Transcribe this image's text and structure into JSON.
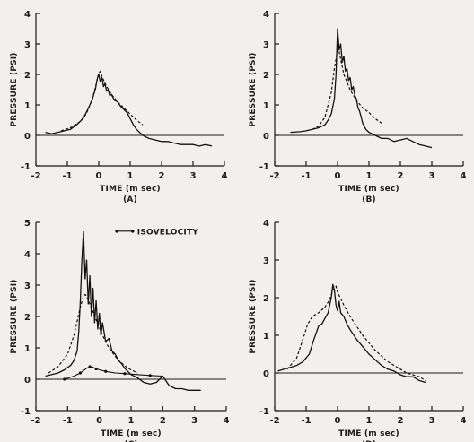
{
  "chart_data": [
    {
      "type": "line",
      "panel_label": "(A)",
      "xlabel": "TIME (m sec)",
      "ylabel": "PRESSURE (PSI)",
      "xlim": [
        -2,
        4
      ],
      "ylim": [
        -1,
        4
      ],
      "xticks": [
        -2,
        -1,
        0,
        1,
        2,
        3,
        4
      ],
      "yticks": [
        -1,
        0,
        1,
        2,
        3,
        4
      ],
      "xtick_labels": [
        "-2",
        "-1",
        "0",
        "1",
        "2",
        "3",
        "4"
      ],
      "ytick_labels": [
        "-1",
        "0",
        "1",
        "2",
        "3",
        "4"
      ],
      "series": [
        {
          "style": "solid",
          "x": [
            -1.7,
            -1.5,
            -1.3,
            -1.1,
            -0.9,
            -0.7,
            -0.5,
            -0.35,
            -0.2,
            -0.1,
            -0.05,
            0,
            0.05,
            0.1,
            0.15,
            0.2,
            0.25,
            0.3,
            0.35,
            0.4,
            0.5,
            0.6,
            0.7,
            0.8,
            0.9,
            1.0,
            1.1,
            1.2,
            1.3,
            1.4,
            1.5,
            1.6,
            1.8,
            2.0,
            2.2,
            2.4,
            2.6,
            2.8,
            3.0,
            3.2,
            3.4,
            3.6
          ],
          "y": [
            0.1,
            0.05,
            0.1,
            0.15,
            0.2,
            0.35,
            0.55,
            0.85,
            1.2,
            1.55,
            1.85,
            2.0,
            1.75,
            1.9,
            1.6,
            1.7,
            1.45,
            1.5,
            1.3,
            1.35,
            1.15,
            1.1,
            0.95,
            0.85,
            0.75,
            0.55,
            0.35,
            0.2,
            0.1,
            0.0,
            -0.05,
            -0.1,
            -0.15,
            -0.2,
            -0.2,
            -0.25,
            -0.3,
            -0.3,
            -0.3,
            -0.35,
            -0.3,
            -0.35
          ]
        },
        {
          "style": "dashed",
          "x": [
            -1.2,
            -0.9,
            -0.6,
            -0.4,
            -0.2,
            -0.1,
            0,
            0.05,
            0.1,
            0.2,
            0.4,
            0.6,
            0.8,
            1.0,
            1.2,
            1.4
          ],
          "y": [
            0.15,
            0.25,
            0.45,
            0.7,
            1.2,
            1.6,
            2.05,
            2.1,
            1.95,
            1.7,
            1.35,
            1.1,
            0.9,
            0.7,
            0.5,
            0.35
          ]
        }
      ]
    },
    {
      "type": "line",
      "panel_label": "(B)",
      "xlabel": "TIME (m sec)",
      "ylabel": "PRESSURE (PSI)",
      "xlim": [
        -2,
        4
      ],
      "ylim": [
        -1,
        4
      ],
      "xticks": [
        -2,
        -1,
        0,
        1,
        2,
        3,
        4
      ],
      "yticks": [
        -1,
        0,
        1,
        2,
        3,
        4
      ],
      "xtick_labels": [
        "-2",
        "-1",
        "0",
        "1",
        "2",
        "3",
        "4"
      ],
      "ytick_labels": [
        "-1",
        "0",
        "1",
        "2",
        "3",
        "4"
      ],
      "series": [
        {
          "style": "solid",
          "x": [
            -1.5,
            -1.2,
            -1.0,
            -0.8,
            -0.6,
            -0.4,
            -0.3,
            -0.2,
            -0.1,
            -0.05,
            0,
            0.05,
            0.1,
            0.15,
            0.2,
            0.25,
            0.3,
            0.35,
            0.4,
            0.45,
            0.5,
            0.55,
            0.6,
            0.65,
            0.7,
            0.75,
            0.8,
            0.9,
            1.0,
            1.2,
            1.4,
            1.6,
            1.8,
            2.0,
            2.2,
            2.4,
            2.6,
            2.8,
            3.0
          ],
          "y": [
            0.1,
            0.12,
            0.15,
            0.2,
            0.25,
            0.35,
            0.5,
            0.7,
            1.2,
            2.0,
            3.5,
            2.8,
            3.0,
            2.4,
            2.6,
            2.1,
            2.2,
            1.8,
            1.9,
            1.5,
            1.6,
            1.3,
            1.2,
            0.9,
            0.8,
            0.6,
            0.4,
            0.2,
            0.1,
            0.0,
            -0.1,
            -0.1,
            -0.2,
            -0.15,
            -0.1,
            -0.2,
            -0.3,
            -0.35,
            -0.4
          ]
        },
        {
          "style": "dashed",
          "x": [
            -0.8,
            -0.6,
            -0.4,
            -0.2,
            -0.1,
            0,
            0.05,
            0.1,
            0.2,
            0.4,
            0.6,
            0.8,
            1.0,
            1.2,
            1.4
          ],
          "y": [
            0.2,
            0.3,
            0.6,
            1.4,
            2.2,
            2.8,
            2.75,
            2.5,
            2.0,
            1.5,
            1.15,
            0.9,
            0.75,
            0.55,
            0.4
          ]
        }
      ]
    },
    {
      "type": "line",
      "panel_label": "(C)",
      "xlabel": "TIME (m sec)",
      "ylabel": "PRESSURE (PSI)",
      "xlim": [
        -2,
        4
      ],
      "ylim": [
        -1,
        5
      ],
      "xticks": [
        -2,
        -1,
        0,
        1,
        2,
        3,
        4
      ],
      "yticks": [
        -1,
        0,
        1,
        2,
        3,
        4,
        5
      ],
      "xtick_labels": [
        "-2",
        "-1",
        "0",
        "1",
        "2",
        "3",
        "4"
      ],
      "ytick_labels": [
        "-1",
        "0",
        "1",
        "2",
        "3",
        "4",
        "5"
      ],
      "legend": {
        "label": "ISOVELOCITY",
        "position": "top-right"
      },
      "series": [
        {
          "style": "solid",
          "x": [
            -1.7,
            -1.5,
            -1.3,
            -1.1,
            -0.9,
            -0.8,
            -0.7,
            -0.65,
            -0.6,
            -0.55,
            -0.5,
            -0.45,
            -0.4,
            -0.35,
            -0.3,
            -0.25,
            -0.2,
            -0.15,
            -0.1,
            -0.05,
            0,
            0.05,
            0.1,
            0.2,
            0.3,
            0.4,
            0.5,
            0.6,
            0.7,
            0.8,
            1.0,
            1.2,
            1.4,
            1.6,
            1.8,
            2.0,
            2.2,
            2.4,
            2.6,
            2.8,
            3.0,
            3.2
          ],
          "y": [
            0.1,
            0.15,
            0.2,
            0.3,
            0.45,
            0.6,
            0.9,
            1.5,
            2.5,
            3.8,
            4.7,
            3.2,
            3.8,
            2.4,
            3.3,
            2.0,
            2.9,
            1.8,
            2.5,
            1.6,
            2.1,
            1.4,
            1.8,
            1.2,
            1.3,
            0.9,
            0.8,
            0.6,
            0.5,
            0.35,
            0.15,
            0.05,
            -0.1,
            -0.15,
            -0.1,
            0.1,
            -0.2,
            -0.3,
            -0.3,
            -0.35,
            -0.35,
            -0.35
          ]
        },
        {
          "style": "dashed",
          "x": [
            -1.6,
            -1.3,
            -1.0,
            -0.8,
            -0.6,
            -0.5,
            -0.45,
            -0.4,
            -0.3,
            -0.1,
            0.1,
            0.3,
            0.6,
            0.9,
            1.2
          ],
          "y": [
            0.2,
            0.4,
            0.8,
            1.4,
            2.3,
            2.65,
            2.7,
            2.65,
            2.4,
            1.9,
            1.4,
            1.0,
            0.6,
            0.35,
            0.2
          ]
        },
        {
          "style": "isovelocity",
          "name": "ISOVELOCITY",
          "x": [
            -1.1,
            -0.8,
            -0.6,
            -0.4,
            -0.3,
            -0.2,
            -0.1,
            0,
            0.2,
            0.5,
            0.8,
            1.2,
            1.6,
            2.0
          ],
          "y": [
            0.0,
            0.1,
            0.2,
            0.35,
            0.4,
            0.38,
            0.33,
            0.3,
            0.25,
            0.2,
            0.18,
            0.15,
            0.12,
            0.1
          ]
        }
      ]
    },
    {
      "type": "line",
      "panel_label": "(D)",
      "xlabel": "TIME (m sec)",
      "ylabel": "PRESSURE (PSI)",
      "xlim": [
        -2,
        4
      ],
      "ylim": [
        -1,
        4
      ],
      "xticks": [
        -2,
        -1,
        0,
        1,
        2,
        3,
        4
      ],
      "yticks": [
        -1,
        0,
        1,
        2,
        3,
        4
      ],
      "xtick_labels": [
        "-2",
        "-1",
        "0",
        "1",
        "2",
        "3",
        "4"
      ],
      "ytick_labels": [
        "-1",
        "0",
        "1",
        "2",
        "3",
        "4"
      ],
      "series": [
        {
          "style": "solid",
          "x": [
            -1.9,
            -1.7,
            -1.5,
            -1.3,
            -1.1,
            -0.9,
            -0.75,
            -0.6,
            -0.5,
            -0.4,
            -0.3,
            -0.2,
            -0.15,
            -0.1,
            -0.05,
            0,
            0.05,
            0.1,
            0.2,
            0.3,
            0.4,
            0.6,
            0.8,
            1.0,
            1.2,
            1.4,
            1.6,
            1.8,
            2.0,
            2.2,
            2.4,
            2.6,
            2.8
          ],
          "y": [
            0.05,
            0.1,
            0.15,
            0.2,
            0.3,
            0.5,
            0.9,
            1.25,
            1.3,
            1.45,
            1.6,
            2.0,
            2.35,
            2.2,
            1.8,
            1.65,
            1.9,
            1.6,
            1.5,
            1.3,
            1.15,
            0.9,
            0.7,
            0.5,
            0.35,
            0.2,
            0.1,
            0.05,
            -0.05,
            -0.1,
            -0.1,
            -0.2,
            -0.25
          ]
        },
        {
          "style": "dashed",
          "x": [
            -1.6,
            -1.3,
            -1.1,
            -0.95,
            -0.8,
            -0.6,
            -0.4,
            -0.25,
            -0.15,
            -0.05,
            0,
            0.2,
            0.4,
            0.6,
            0.8,
            1.0,
            1.2,
            1.4,
            1.6,
            1.8,
            2.0,
            2.2,
            2.4,
            2.6,
            2.8
          ],
          "y": [
            0.1,
            0.4,
            0.9,
            1.3,
            1.5,
            1.6,
            1.75,
            1.95,
            2.2,
            2.3,
            2.15,
            1.8,
            1.5,
            1.25,
            1.0,
            0.8,
            0.6,
            0.45,
            0.3,
            0.2,
            0.1,
            0.0,
            -0.05,
            -0.1,
            -0.2
          ]
        }
      ]
    }
  ]
}
